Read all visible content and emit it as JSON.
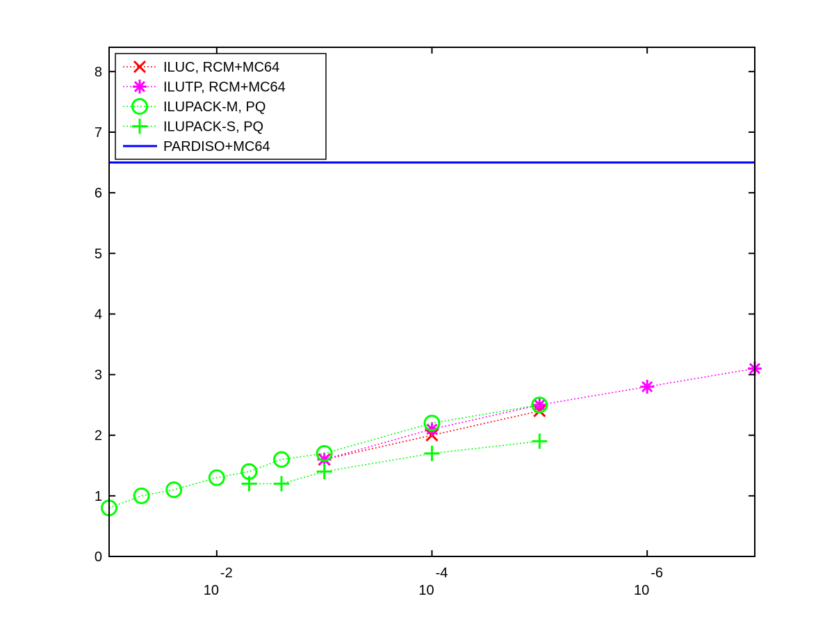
{
  "chart_data": {
    "type": "line",
    "title": "",
    "xlabel": "",
    "ylabel": "",
    "xscale": "log",
    "x_direction": "decreasing",
    "xlim": [
      0.1,
      1e-07
    ],
    "ylim": [
      0,
      8.4
    ],
    "grid": false,
    "legend_position": "top-left",
    "x_ticks": [
      {
        "value": 0.01,
        "base": "10",
        "exp": "-2"
      },
      {
        "value": 0.0001,
        "base": "10",
        "exp": "-4"
      },
      {
        "value": 1e-06,
        "base": "10",
        "exp": "-6"
      }
    ],
    "y_ticks": [
      "0",
      "1",
      "2",
      "3",
      "4",
      "5",
      "6",
      "7",
      "8"
    ],
    "series": [
      {
        "name": "ILUC, RCM+MC64",
        "color": "#ff0000",
        "marker": "x",
        "line": "dotted",
        "x": [
          0.001,
          0.0001,
          1e-05
        ],
        "y": [
          1.6,
          2.0,
          2.4
        ]
      },
      {
        "name": "ILUTP, RCM+MC64",
        "color": "#ff00ff",
        "marker": "asterisk",
        "line": "dotted",
        "x": [
          0.001,
          0.0001,
          1e-05,
          1e-06,
          1e-07
        ],
        "y": [
          1.6,
          2.1,
          2.5,
          2.8,
          3.1
        ]
      },
      {
        "name": "ILUPACK-M, PQ",
        "color": "#00ff00",
        "marker": "circle",
        "line": "dotted",
        "x": [
          0.1,
          0.05,
          0.025,
          0.01,
          0.005,
          0.0025,
          0.001,
          0.0001,
          1e-05
        ],
        "y": [
          0.8,
          1.0,
          1.1,
          1.3,
          1.4,
          1.6,
          1.7,
          2.2,
          2.5
        ]
      },
      {
        "name": "ILUPACK-S, PQ",
        "color": "#00ff00",
        "marker": "plus",
        "line": "dotted",
        "x": [
          0.005,
          0.0025,
          0.001,
          0.0001,
          1e-05
        ],
        "y": [
          1.2,
          1.2,
          1.4,
          1.7,
          1.9
        ]
      },
      {
        "name": "PARDISO+MC64",
        "color": "#0000ff",
        "marker": "none",
        "line": "solid",
        "x": [
          0.1,
          1e-07
        ],
        "y": [
          6.5,
          6.5
        ]
      }
    ]
  }
}
